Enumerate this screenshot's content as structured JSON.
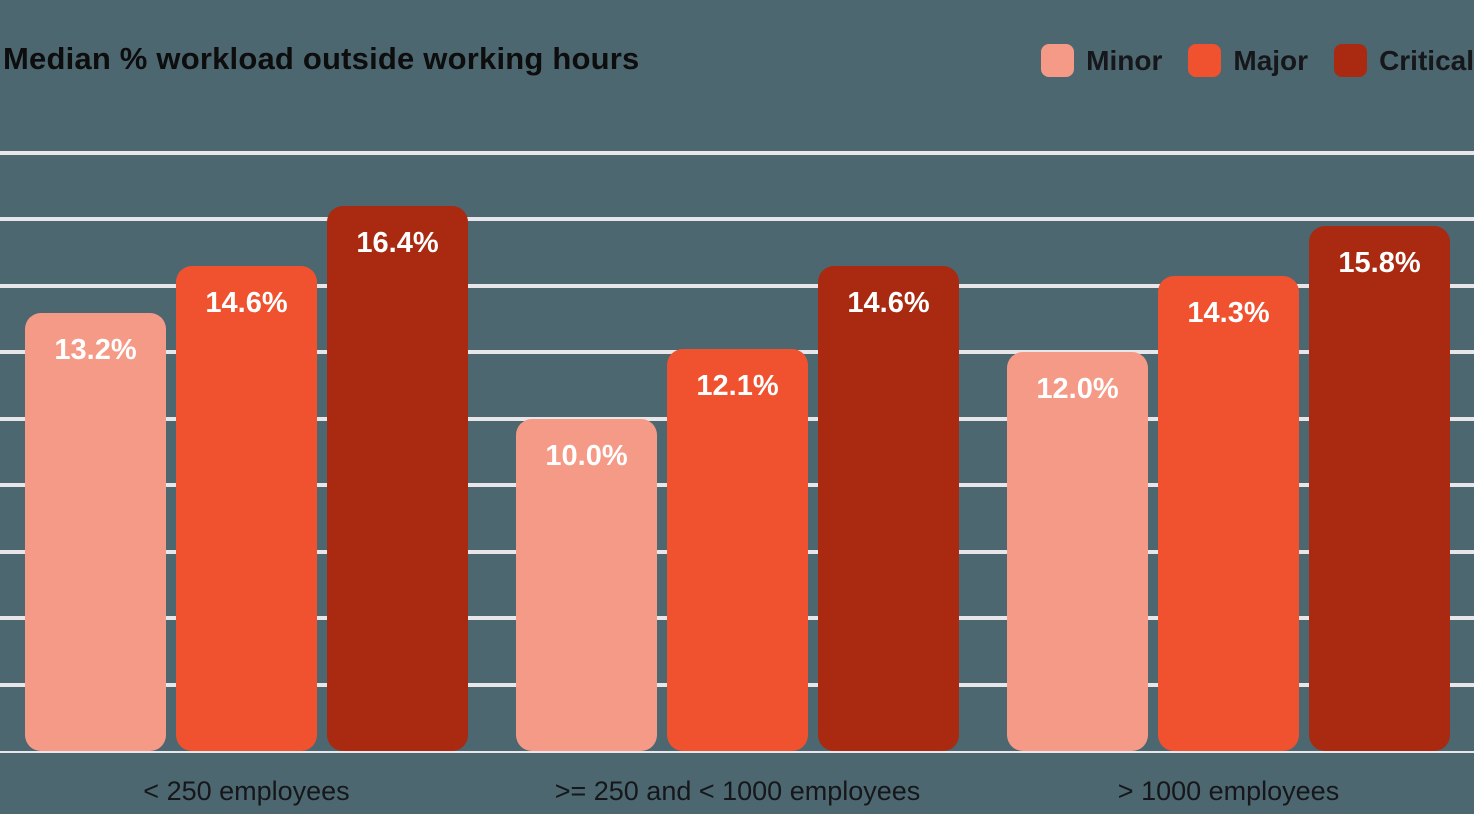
{
  "title": "Median % workload outside working hours",
  "colors": {
    "background": "#4C6770",
    "gridline": "#E8E6E8",
    "title_text": "#0D0D0D",
    "axis_label_text": "#15171A",
    "bar_label_text": "#FFFFFF",
    "minor": "#F59A87",
    "major": "#F0512F",
    "critical": "#A92A10"
  },
  "chart_data": {
    "type": "bar",
    "title": "Median % workload outside working hours",
    "categories": [
      "< 250 employees",
      ">= 250 and < 1000 employees",
      "> 1000 employees"
    ],
    "series": [
      {
        "name": "Minor",
        "color": "#F59A87",
        "values": [
          13.2,
          10.0,
          12.0
        ],
        "labels": [
          "13.2%",
          "10.0%",
          "12.0%"
        ]
      },
      {
        "name": "Major",
        "color": "#F0512F",
        "values": [
          14.6,
          12.1,
          14.3
        ],
        "labels": [
          "14.6%",
          "12.1%",
          "14.3%"
        ]
      },
      {
        "name": "Critical",
        "color": "#A92A10",
        "values": [
          16.4,
          14.6,
          15.8
        ],
        "labels": [
          "16.4%",
          "14.6%",
          "15.8%"
        ]
      }
    ],
    "ylim": [
      0,
      18
    ],
    "grid_step": 2,
    "grid": true,
    "y_axis_labels_visible": false,
    "legend_position": "top-right",
    "value_label_format": "percent_1dp",
    "xlabel": "",
    "ylabel": ""
  }
}
